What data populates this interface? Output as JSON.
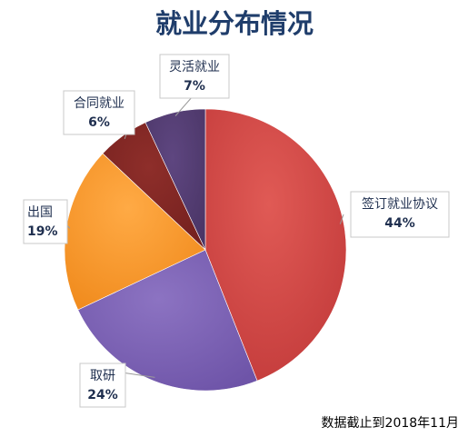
{
  "chart_data": {
    "type": "pie",
    "title": "就业分布情况",
    "note": "数据截止到2018年11月",
    "start_angle_deg": 0,
    "direction": "clockwise",
    "slices": [
      {
        "label": "签订就业协议",
        "percent_label": "44%",
        "value": 44,
        "color": "#C23A3A",
        "highlight": "#E05A55"
      },
      {
        "label": "取研",
        "percent_label": "24%",
        "value": 24,
        "color": "#6E54A8",
        "highlight": "#8C73C2"
      },
      {
        "label": "出国",
        "percent_label": "19%",
        "value": 19,
        "color": "#F08A1C",
        "highlight": "#FFAA45"
      },
      {
        "label": "合同就业",
        "percent_label": "6%",
        "value": 6,
        "color": "#74201E",
        "highlight": "#8E2E2A"
      },
      {
        "label": "灵活就业",
        "percent_label": "7%",
        "value": 7,
        "color": "#4A3566",
        "highlight": "#5E4680"
      }
    ]
  }
}
